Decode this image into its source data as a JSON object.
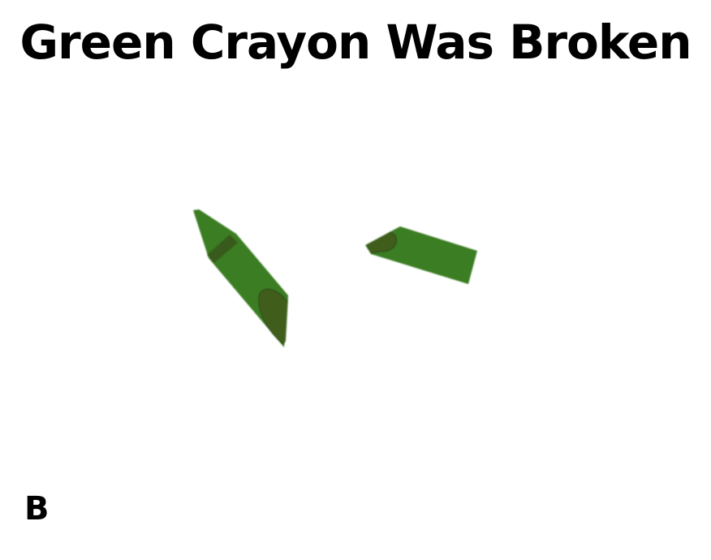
{
  "title": "Green Crayon Was Broken",
  "corner_label": "B",
  "illustration": {
    "subject": "broken-green-crayon",
    "pieces": 2,
    "colors": {
      "crayon_body": "#3a7d22",
      "crayon_dark": "#375a1c",
      "background": "#ffffff"
    }
  }
}
